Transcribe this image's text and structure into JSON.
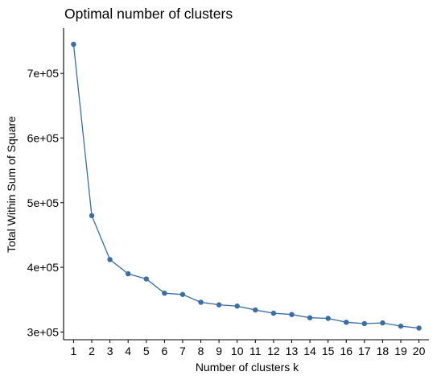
{
  "chart_data": {
    "type": "line",
    "title": "Optimal number of clusters",
    "xlabel": "Number of clusters k",
    "ylabel": "Total Within Sum of Square",
    "x": [
      1,
      2,
      3,
      4,
      5,
      6,
      7,
      8,
      9,
      10,
      11,
      12,
      13,
      14,
      15,
      16,
      17,
      18,
      19,
      20
    ],
    "x_tick_labels": [
      "1",
      "2",
      "3",
      "4",
      "5",
      "6",
      "7",
      "8",
      "9",
      "10",
      "11",
      "12",
      "13",
      "14",
      "15",
      "16",
      "17",
      "18",
      "19",
      "20"
    ],
    "series": [
      {
        "values": [
          745000,
          480000,
          412000,
          390000,
          382000,
          360000,
          358000,
          346000,
          342000,
          340000,
          334000,
          329000,
          327000,
          322000,
          321000,
          315000,
          313000,
          314000,
          309000,
          306000
        ],
        "color": "#3a6ea5"
      }
    ],
    "y_ticks": [
      300000,
      400000,
      500000,
      600000,
      700000
    ],
    "y_tick_labels": [
      "3e+05",
      "4e+05",
      "5e+05",
      "6e+05",
      "7e+05"
    ],
    "xlim": [
      0.45,
      20.55
    ],
    "ylim": [
      288000,
      770000
    ],
    "grid": false,
    "legend": "none"
  }
}
